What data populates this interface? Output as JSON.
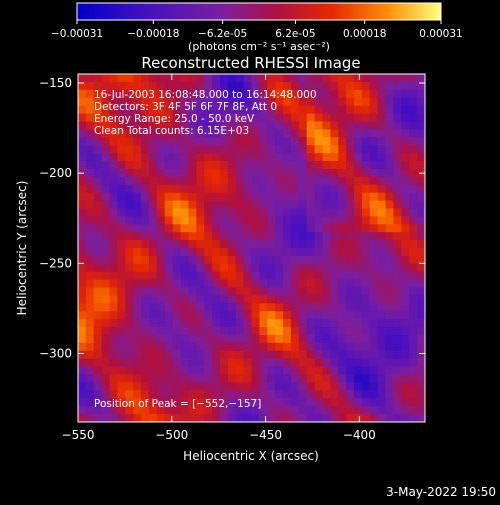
{
  "colors": {
    "background": "#000000",
    "foreground": "#ffffff"
  },
  "colorbar": {
    "ticks": [
      "-0.00031",
      "-0.00018",
      "-6.2e-05",
      "6.2e-05",
      "0.00018",
      "0.00031"
    ],
    "unit_label": "(photons cm⁻² s⁻¹ asec⁻²)",
    "range": [
      -0.00031,
      0.00031
    ]
  },
  "chart_data": {
    "type": "heatmap",
    "title": "Reconstructed RHESSI Image",
    "xlabel": "Heliocentric X (arcsec)",
    "ylabel": "Heliocentric Y (arcsec)",
    "xlim": [
      -550,
      -365
    ],
    "ylim": [
      -338,
      -145
    ],
    "xticks": [
      -550,
      -500,
      -450,
      -400
    ],
    "yticks": [
      -150,
      -200,
      -250,
      -300
    ],
    "xtick_labels": [
      "−550",
      "−500",
      "−450",
      "−400"
    ],
    "ytick_labels": [
      "−150",
      "−200",
      "−250",
      "−300"
    ],
    "annotations": [
      "16-Jul-2003 16:08:48.000 to 16:14:48.000",
      "Detectors: 3F 4F 5F 6F 7F 8F, Att 0",
      "Energy Range: 25.0 - 50.0 keV",
      "Clean    Total counts: 6.15E+03"
    ],
    "peak_label": "Position of Peak = [−552,−157]",
    "value_range": [
      -0.00031,
      0.00031
    ]
  },
  "footer": {
    "date": "3-May-2022 19:50"
  }
}
